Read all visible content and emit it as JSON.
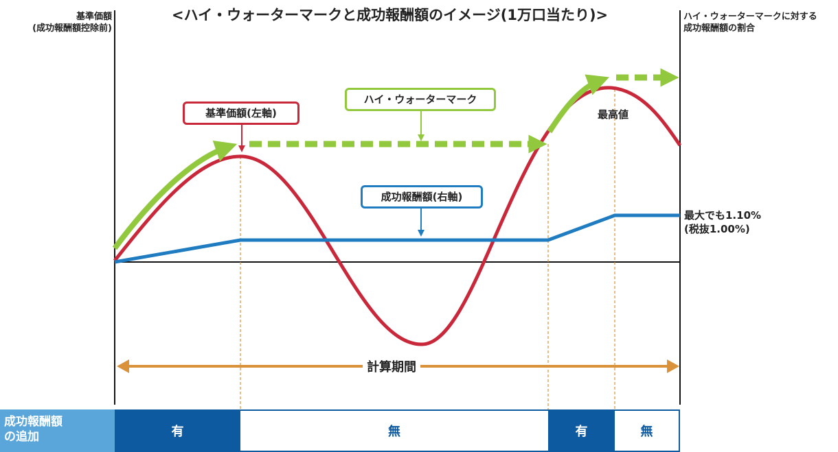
{
  "title": "<ハイ・ウォーターマークと成功報酬額のイメージ(1万口当たり)>",
  "left_axis": {
    "line1": "基準価額",
    "line2": "(成功報酬額控除前)"
  },
  "right_axis": {
    "line1": "ハイ・ウォーターマークに対する",
    "line2": "成功報酬額の割合"
  },
  "labels": {
    "nav": "基準価額(左軸)",
    "hwm": "ハイ・ウォーターマーク",
    "fee": "成功報酬額(右軸)",
    "peak": "最高値",
    "max_line1": "最大でも1.10%",
    "max_line2": "(税抜1.00%)",
    "period": "計算期間"
  },
  "bottom_row": {
    "header_line1": "成功報酬額",
    "header_line2": "の追加",
    "segments": [
      {
        "label": "有",
        "type": "yes"
      },
      {
        "label": "無",
        "type": "no"
      },
      {
        "label": "有",
        "type": "yes"
      },
      {
        "label": "無",
        "type": "no"
      }
    ]
  },
  "colors": {
    "nav_line": "#c8283a",
    "hwm": "#92c83e",
    "fee_line": "#1f7cc0",
    "period_arrow": "#d9913a",
    "bottom_yes": "#0e5aa0",
    "bottom_header": "#5aa6da"
  }
}
